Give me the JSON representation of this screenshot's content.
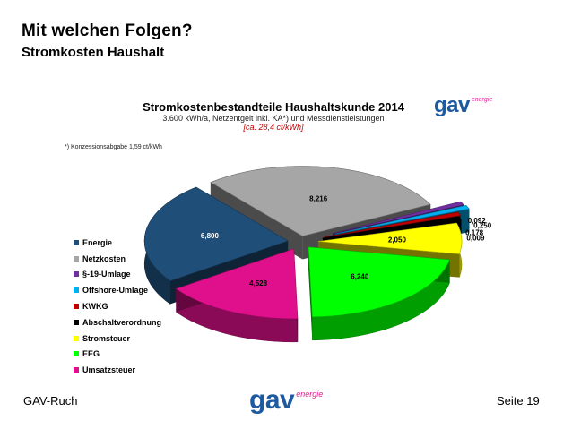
{
  "slide": {
    "title": "Mit welchen Folgen?",
    "subtitle": "Stromkosten Haushalt"
  },
  "logo": {
    "brand": "gav",
    "tagline": "energie"
  },
  "footer": {
    "left": "GAV-Ruch",
    "right": "Seite 19"
  },
  "chart_data": {
    "type": "pie",
    "title": "Stromkostenbestandteile Haushaltskunde 2014",
    "subtitle": "3.600 kWh/a, Netzentgelt inkl. KA*) und Messdienstleistungen",
    "subtitle2": "[ca. 28,4 ct/kWh]",
    "footnote": "*) Konzessionsabgabe 1,59 ct/kWh",
    "legend_position": "left",
    "slices": [
      {
        "name": "Energie",
        "value": 6.8,
        "label": "6,800",
        "color": "#1f4e79"
      },
      {
        "name": "Netzkosten",
        "value": 8.216,
        "label": "8,216",
        "color": "#a6a6a6"
      },
      {
        "name": "§-19-Umlage",
        "value": 0.092,
        "label": "0,092",
        "color": "#7030a0"
      },
      {
        "name": "Offshore-Umlage",
        "value": 0.25,
        "label": "0,250",
        "color": "#00b0f0"
      },
      {
        "name": "KWKG",
        "value": 0.178,
        "label": "0,178",
        "color": "#c00000"
      },
      {
        "name": "Abschaltverordnung",
        "value": 0.009,
        "label": "0,009",
        "color": "#000000"
      },
      {
        "name": "Stromsteuer",
        "value": 2.05,
        "label": "2,050",
        "color": "#ffff00"
      },
      {
        "name": "EEG",
        "value": 6.24,
        "label": "6,240",
        "color": "#00ff00"
      },
      {
        "name": "Umsatzsteuer",
        "value": 4.528,
        "label": "4,528",
        "color": "#e0108c"
      }
    ]
  }
}
